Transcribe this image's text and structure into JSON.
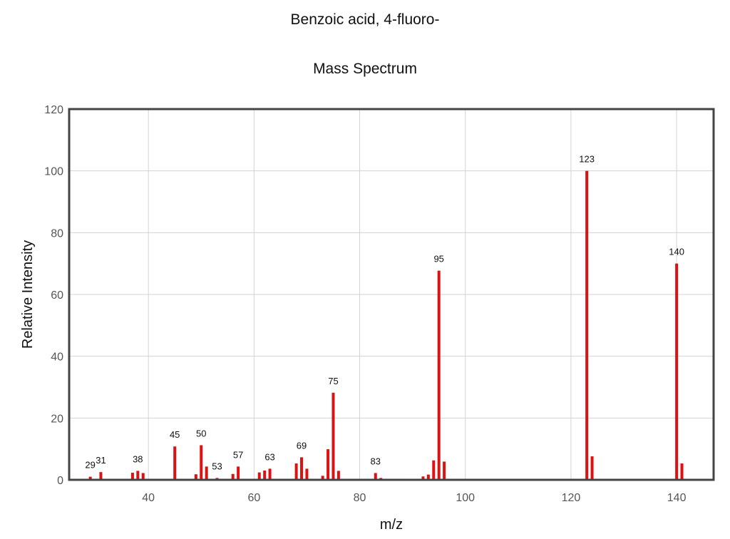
{
  "chart_data": {
    "type": "bar",
    "title": "Benzoic acid, 4-fluoro-",
    "subtitle": "Mass Spectrum",
    "xlabel": "m/z",
    "ylabel": "Relative Intensity",
    "xlim": [
      25,
      147
    ],
    "ylim": [
      0,
      120
    ],
    "xticks": [
      40,
      60,
      80,
      100,
      120,
      140
    ],
    "yticks": [
      0,
      20,
      40,
      60,
      80,
      100,
      120
    ],
    "grid": true,
    "bar_color": "#dd1111",
    "peaks": [
      {
        "x": 29,
        "y": 1.0
      },
      {
        "x": 31,
        "y": 2.5
      },
      {
        "x": 37,
        "y": 2.3
      },
      {
        "x": 38,
        "y": 2.9
      },
      {
        "x": 39,
        "y": 2.2
      },
      {
        "x": 45,
        "y": 10.8
      },
      {
        "x": 49,
        "y": 1.8
      },
      {
        "x": 50,
        "y": 11.2
      },
      {
        "x": 51,
        "y": 4.3
      },
      {
        "x": 53,
        "y": 0.6
      },
      {
        "x": 56,
        "y": 1.9
      },
      {
        "x": 57,
        "y": 4.3
      },
      {
        "x": 61,
        "y": 2.4
      },
      {
        "x": 62,
        "y": 3.0
      },
      {
        "x": 63,
        "y": 3.6
      },
      {
        "x": 68,
        "y": 5.3
      },
      {
        "x": 69,
        "y": 7.3
      },
      {
        "x": 70,
        "y": 3.6
      },
      {
        "x": 73,
        "y": 1.3
      },
      {
        "x": 74,
        "y": 9.9
      },
      {
        "x": 75,
        "y": 28.2
      },
      {
        "x": 76,
        "y": 2.9
      },
      {
        "x": 83,
        "y": 2.2
      },
      {
        "x": 84,
        "y": 0.6
      },
      {
        "x": 92,
        "y": 1.1
      },
      {
        "x": 93,
        "y": 1.7
      },
      {
        "x": 94,
        "y": 6.3
      },
      {
        "x": 95,
        "y": 67.7
      },
      {
        "x": 96,
        "y": 5.9
      },
      {
        "x": 123,
        "y": 100.0
      },
      {
        "x": 124,
        "y": 7.6
      },
      {
        "x": 140,
        "y": 70.0
      },
      {
        "x": 141,
        "y": 5.3
      }
    ],
    "peak_labels": [
      {
        "x": 29,
        "y": 1.0,
        "text": "29"
      },
      {
        "x": 31,
        "y": 2.5,
        "text": "31"
      },
      {
        "x": 38,
        "y": 2.9,
        "text": "38"
      },
      {
        "x": 45,
        "y": 10.8,
        "text": "45"
      },
      {
        "x": 50,
        "y": 11.2,
        "text": "50"
      },
      {
        "x": 53,
        "y": 0.6,
        "text": "53"
      },
      {
        "x": 57,
        "y": 4.3,
        "text": "57"
      },
      {
        "x": 63,
        "y": 3.6,
        "text": "63"
      },
      {
        "x": 69,
        "y": 7.3,
        "text": "69"
      },
      {
        "x": 75,
        "y": 28.2,
        "text": "75"
      },
      {
        "x": 83,
        "y": 2.2,
        "text": "83"
      },
      {
        "x": 95,
        "y": 67.7,
        "text": "95"
      },
      {
        "x": 123,
        "y": 100.0,
        "text": "123"
      },
      {
        "x": 140,
        "y": 70.0,
        "text": "140"
      }
    ]
  }
}
